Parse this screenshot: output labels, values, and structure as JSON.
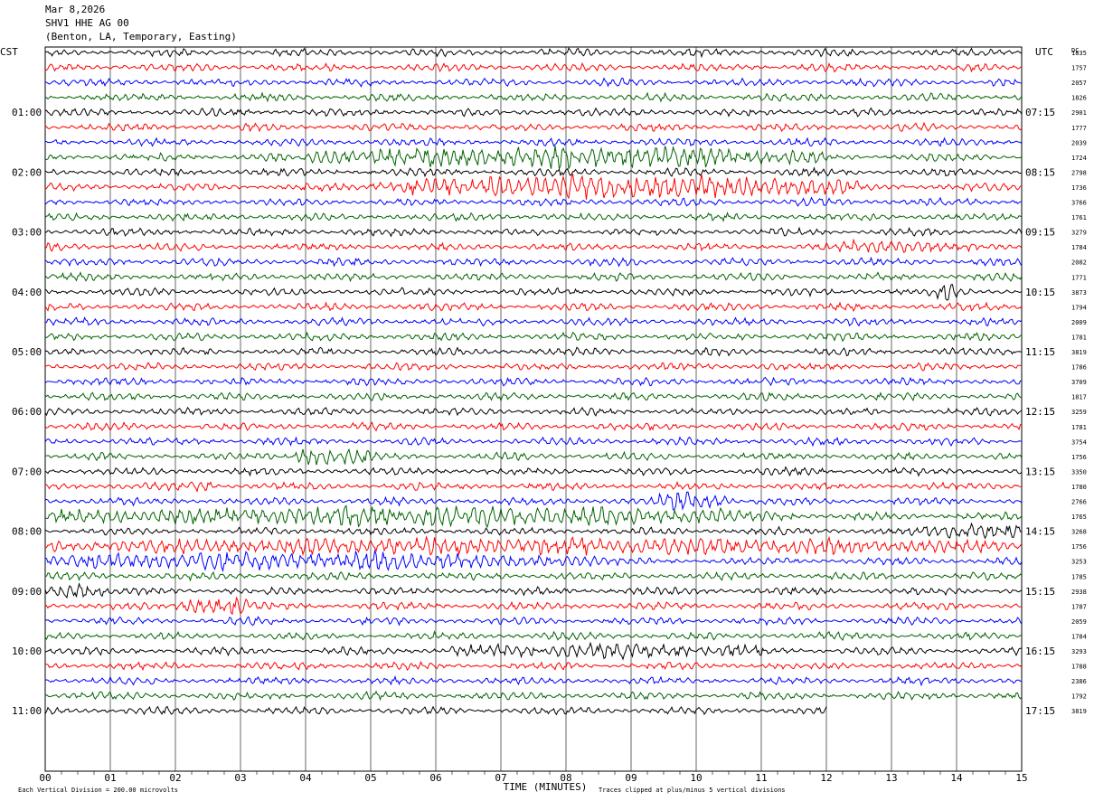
{
  "header": {
    "date": "Mar 8,2026",
    "station": "SHV1 HHE AG 00",
    "location": "(Benton, LA, Temporary, Easting)"
  },
  "left_tz": "CST",
  "right_tz": "UTC",
  "dc_label": "DC",
  "footer": {
    "scale_note": "Each Vertical Division =  200.00 microvolts",
    "clip_note": "Traces clipped at plus/minus 5 vertical divisions"
  },
  "colors": {
    "trace_cycle": [
      "#000000",
      "#ff0000",
      "#0000ff",
      "#006400"
    ],
    "grid": "#000000"
  },
  "chart_data": {
    "type": "line",
    "title": "SHV1 HHE AG 00",
    "xlabel": "TIME (MINUTES)",
    "x_ticks": [
      "00",
      "01",
      "02",
      "03",
      "04",
      "05",
      "06",
      "07",
      "08",
      "09",
      "10",
      "11",
      "12",
      "13",
      "14",
      "15"
    ],
    "xlim": [
      0,
      15
    ],
    "row_minutes": 15,
    "rows": 45,
    "last_row_end_minute": 12,
    "left_hour_labels": [
      "01:00",
      "02:00",
      "03:00",
      "04:00",
      "05:00",
      "06:00",
      "07:00",
      "08:00",
      "09:00",
      "10:00",
      "11:00"
    ],
    "right_hour_labels": [
      "07:15",
      "08:15",
      "09:15",
      "10:15",
      "11:15",
      "12:15",
      "13:15",
      "14:15",
      "15:15",
      "16:15",
      "17:15"
    ],
    "dc_offsets": [
      "1835",
      "1757",
      "2057",
      "1826",
      "2901",
      "1777",
      "2039",
      "1724",
      "2798",
      "1736",
      "3766",
      "1761",
      "3279",
      "1784",
      "2082",
      "1771",
      "3873",
      "1794",
      "2009",
      "1781",
      "3819",
      "1786",
      "3709",
      "1817",
      "3259",
      "1781",
      "3754",
      "1756",
      "3350",
      "1780",
      "2766",
      "1765",
      "3268",
      "1756",
      "3253",
      "1785",
      "2938",
      "1787",
      "2059",
      "1784",
      "3293",
      "1788",
      "2386",
      "1792",
      "3819"
    ],
    "events": [
      {
        "row": 7,
        "start": 4.0,
        "end": 12.0,
        "amplitude": 2.2
      },
      {
        "row": 9,
        "start": 5.0,
        "end": 12.5,
        "amplitude": 2.6
      },
      {
        "row": 13,
        "start": 12.2,
        "end": 13.8,
        "amplitude": 1.3
      },
      {
        "row": 16,
        "start": 13.7,
        "end": 14.0,
        "amplitude": 1.4
      },
      {
        "row": 27,
        "start": 3.8,
        "end": 5.0,
        "amplitude": 2.4
      },
      {
        "row": 29,
        "start": 2.2,
        "end": 2.6,
        "amplitude": 1.0
      },
      {
        "row": 30,
        "start": 9.4,
        "end": 10.6,
        "amplitude": 1.8
      },
      {
        "row": 31,
        "start": 0.0,
        "end": 11.5,
        "amplitude": 1.9
      },
      {
        "row": 32,
        "start": 13.5,
        "end": 15.0,
        "amplitude": 1.6
      },
      {
        "row": 33,
        "start": 0.0,
        "end": 15.0,
        "amplitude": 1.5
      },
      {
        "row": 34,
        "start": 0.0,
        "end": 8.5,
        "amplitude": 1.7
      },
      {
        "row": 36,
        "start": 0.0,
        "end": 0.9,
        "amplitude": 1.6
      },
      {
        "row": 37,
        "start": 2.0,
        "end": 3.2,
        "amplitude": 1.8
      },
      {
        "row": 40,
        "start": 6.2,
        "end": 11.0,
        "amplitude": 1.3
      }
    ]
  }
}
